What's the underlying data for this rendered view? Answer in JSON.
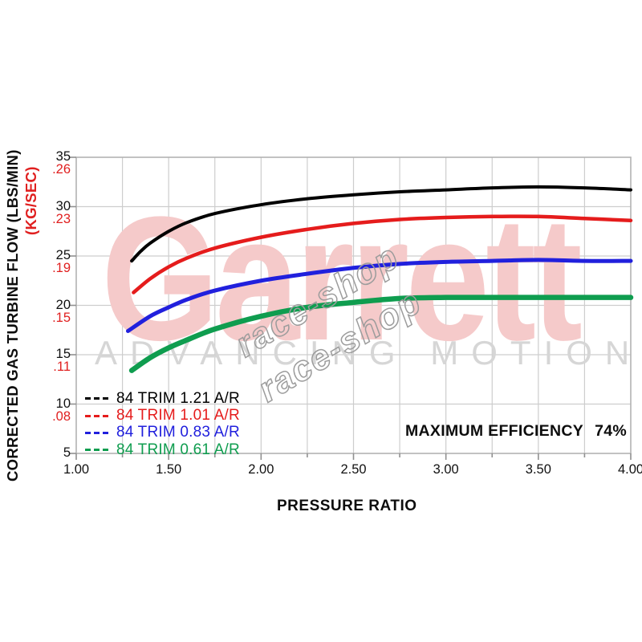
{
  "page": {
    "background": "#ffffff"
  },
  "axes": {
    "x_title": "PRESSURE RATIO",
    "y_title_primary": "CORRECTED GAS TURBINE FLOW (LBS/MIN)",
    "y_title_secondary": "(KG/SEC)",
    "x_tick_labels": [
      "1.00",
      "1.50",
      "2.00",
      "2.50",
      "3.00",
      "3.50",
      "4.00"
    ],
    "y_tick_labels_primary": [
      "5",
      "10",
      "15",
      "20",
      "25",
      "30",
      "35"
    ],
    "y_tick_labels_secondary": [
      ".08",
      ".11",
      ".15",
      ".19",
      ".23",
      ".26"
    ]
  },
  "watermarks": {
    "brand": "Garrett",
    "tagline": "ADVANCING MOTION",
    "race_shop": "race-shop"
  },
  "annotations": {
    "max_efficiency_label": "MAXIMUM EFFICIENCY",
    "max_efficiency_value": "74%"
  },
  "colors": {
    "grid": "#cdcdcd",
    "spine": "#b2b2b2",
    "tick": "#909090",
    "tick_text": "#111111",
    "secondary_axis": "#e02020",
    "watermark_pink": "#f5caca",
    "watermark_gray": "#d6d6d6"
  },
  "chart_data": {
    "type": "line",
    "title": "",
    "xlabel": "PRESSURE RATIO",
    "ylabel": "CORRECTED GAS TURBINE FLOW (LBS/MIN)",
    "ylabel_secondary": "(KG/SEC)",
    "xlim": [
      1.0,
      4.0
    ],
    "ylim": [
      5,
      35
    ],
    "x_major_ticks": [
      1.0,
      1.5,
      2.0,
      2.5,
      3.0,
      3.5,
      4.0
    ],
    "x_minor_step": 0.25,
    "y_major_ticks": [
      5,
      10,
      15,
      20,
      25,
      30,
      35
    ],
    "y_secondary_ticks": [
      0.08,
      0.11,
      0.15,
      0.19,
      0.23,
      0.26
    ],
    "grid": true,
    "legend_position": "lower-left",
    "max_efficiency_pct": 74,
    "series": [
      {
        "name": "84 TRIM 1.21 A/R",
        "color": "#000000",
        "width": 4,
        "points": [
          [
            1.3,
            24.5
          ],
          [
            1.35,
            25.5
          ],
          [
            1.4,
            26.3
          ],
          [
            1.5,
            27.5
          ],
          [
            1.6,
            28.4
          ],
          [
            1.75,
            29.3
          ],
          [
            2.0,
            30.2
          ],
          [
            2.25,
            30.8
          ],
          [
            2.5,
            31.2
          ],
          [
            2.75,
            31.5
          ],
          [
            3.0,
            31.7
          ],
          [
            3.25,
            31.9
          ],
          [
            3.5,
            32.0
          ],
          [
            3.75,
            31.9
          ],
          [
            4.0,
            31.7
          ]
        ]
      },
      {
        "name": "84 TRIM 1.01 A/R",
        "color": "#e51c1c",
        "width": 4.5,
        "points": [
          [
            1.31,
            21.3
          ],
          [
            1.4,
            22.7
          ],
          [
            1.5,
            23.9
          ],
          [
            1.6,
            24.8
          ],
          [
            1.75,
            25.8
          ],
          [
            2.0,
            26.9
          ],
          [
            2.25,
            27.7
          ],
          [
            2.5,
            28.3
          ],
          [
            2.75,
            28.7
          ],
          [
            3.0,
            28.9
          ],
          [
            3.25,
            29.0
          ],
          [
            3.5,
            29.0
          ],
          [
            3.75,
            28.8
          ],
          [
            4.0,
            28.6
          ]
        ]
      },
      {
        "name": "84 TRIM 0.83 A/R",
        "color": "#2120dd",
        "width": 5,
        "points": [
          [
            1.28,
            17.4
          ],
          [
            1.4,
            18.9
          ],
          [
            1.5,
            19.8
          ],
          [
            1.6,
            20.6
          ],
          [
            1.75,
            21.5
          ],
          [
            2.0,
            22.5
          ],
          [
            2.25,
            23.2
          ],
          [
            2.5,
            23.8
          ],
          [
            2.75,
            24.2
          ],
          [
            3.0,
            24.4
          ],
          [
            3.25,
            24.5
          ],
          [
            3.5,
            24.6
          ],
          [
            3.75,
            24.5
          ],
          [
            4.0,
            24.5
          ]
        ]
      },
      {
        "name": "84 TRIM 0.61 A/R",
        "color": "#0f9d4f",
        "width": 6.5,
        "points": [
          [
            1.3,
            13.4
          ],
          [
            1.4,
            14.7
          ],
          [
            1.5,
            15.7
          ],
          [
            1.6,
            16.5
          ],
          [
            1.75,
            17.6
          ],
          [
            2.0,
            18.9
          ],
          [
            2.25,
            19.8
          ],
          [
            2.5,
            20.3
          ],
          [
            2.75,
            20.7
          ],
          [
            3.0,
            20.8
          ],
          [
            3.25,
            20.8
          ],
          [
            3.5,
            20.8
          ],
          [
            3.75,
            20.8
          ],
          [
            4.0,
            20.8
          ]
        ]
      }
    ]
  }
}
